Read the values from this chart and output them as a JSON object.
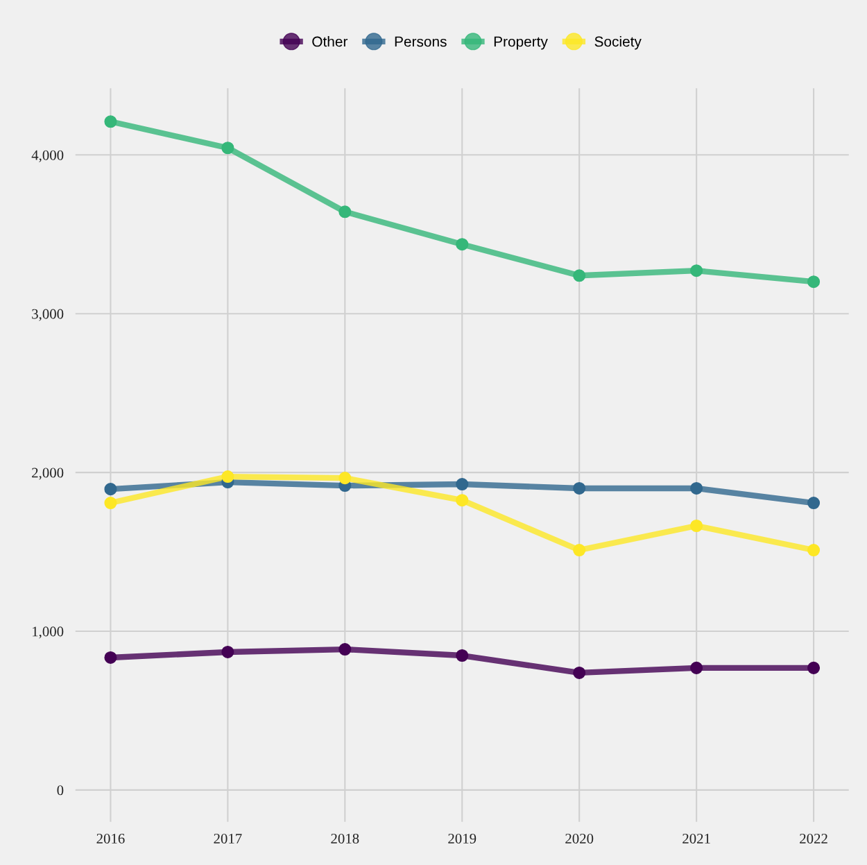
{
  "chart_data": {
    "type": "line",
    "x": [
      2016,
      2017,
      2018,
      2019,
      2020,
      2021,
      2022
    ],
    "series": [
      {
        "name": "Other",
        "color": "#440154",
        "values": [
          834,
          869,
          886,
          847,
          738,
          769,
          769
        ]
      },
      {
        "name": "Persons",
        "color": "#31688e",
        "values": [
          1895,
          1939,
          1917,
          1926,
          1900,
          1900,
          1808
        ]
      },
      {
        "name": "Property",
        "color": "#35b779",
        "values": [
          4210,
          4044,
          3642,
          3437,
          3240,
          3271,
          3201
        ]
      },
      {
        "name": "Society",
        "color": "#fde725",
        "values": [
          1808,
          1974,
          1965,
          1825,
          1511,
          1664,
          1511
        ]
      }
    ],
    "xlim": [
      2015.7,
      2022.3
    ],
    "xticks": [
      2016,
      2017,
      2018,
      2019,
      2020,
      2021,
      2022
    ],
    "ylim": [
      -200,
      4420
    ],
    "yticks": [
      {
        "value": 0,
        "label": "0"
      },
      {
        "value": 1000,
        "label": "1,000"
      },
      {
        "value": 2000,
        "label": "2,000"
      },
      {
        "value": 3000,
        "label": "3,000"
      },
      {
        "value": 4000,
        "label": "4,000"
      }
    ],
    "grid": true,
    "legend": "top",
    "marker": "circle",
    "line_style": "solid"
  }
}
